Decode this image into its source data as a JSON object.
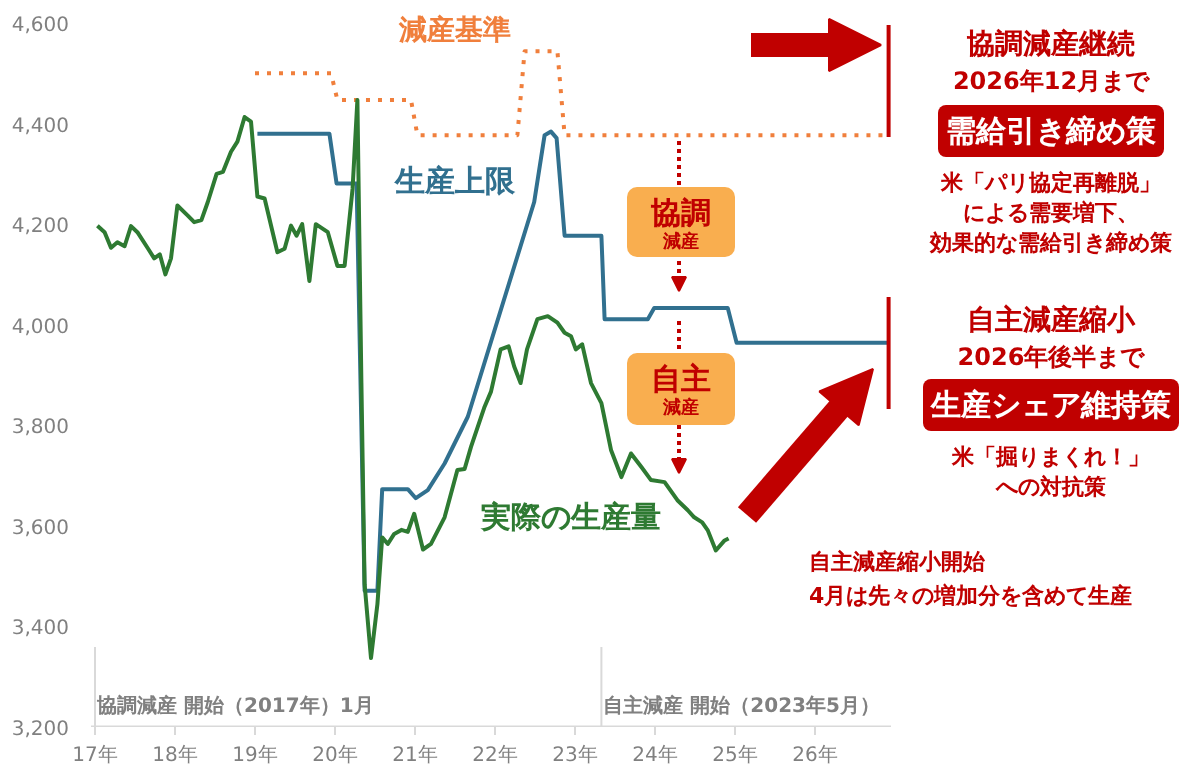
{
  "chart_data": {
    "type": "line",
    "xlim": [
      16.95,
      26.95
    ],
    "ylim": [
      3200,
      4600
    ],
    "xticks": [
      {
        "value": 17,
        "label": "17年"
      },
      {
        "value": 18,
        "label": "18年"
      },
      {
        "value": 19,
        "label": "19年"
      },
      {
        "value": 20,
        "label": "20年"
      },
      {
        "value": 21,
        "label": "21年"
      },
      {
        "value": 22,
        "label": "22年"
      },
      {
        "value": 23,
        "label": "23年"
      },
      {
        "value": 24,
        "label": "24年"
      },
      {
        "value": 25,
        "label": "25年"
      },
      {
        "value": 26,
        "label": "26年"
      }
    ],
    "yticks": [
      {
        "value": 3200,
        "label": "3,200"
      },
      {
        "value": 3400,
        "label": "3,400"
      },
      {
        "value": 3600,
        "label": "3,600"
      },
      {
        "value": 3800,
        "label": "3,800"
      },
      {
        "value": 4000,
        "label": "4,000"
      },
      {
        "value": 4200,
        "label": "4,200"
      },
      {
        "value": 4400,
        "label": "4,400"
      },
      {
        "value": 4600,
        "label": "4,600"
      }
    ],
    "grid": false,
    "series": [
      {
        "name": "減産基準",
        "color": "#f07f3c",
        "line_style": "dotted",
        "x": [
          19.0,
          19.95,
          20.03,
          20.95,
          21.03,
          22.28,
          22.37,
          22.78,
          22.87,
          26.91
        ],
        "values": [
          4500,
          4500,
          4447,
          4447,
          4377,
          4377,
          4544,
          4544,
          4377,
          4377
        ]
      },
      {
        "name": "生産上限",
        "color": "#31708f",
        "line_style": "solid",
        "x": [
          19.03,
          19.93,
          20.02,
          20.27,
          20.37,
          20.53,
          20.59,
          20.91,
          21.01,
          21.16,
          21.37,
          21.66,
          22.49,
          22.62,
          22.7,
          22.77,
          22.87,
          23.33,
          23.37,
          23.91,
          23.99,
          24.91,
          25.02,
          26.91
        ],
        "values": [
          4380,
          4380,
          4281,
          4281,
          3471,
          3471,
          3673,
          3673,
          3655,
          3671,
          3724,
          3817,
          4244,
          4377,
          4384,
          4371,
          4177,
          4177,
          4011,
          4011,
          4033,
          4033,
          3964,
          3964
        ]
      },
      {
        "name": "実際の生産量",
        "color": "#2e7a32",
        "line_style": "solid",
        "x": [
          17.03,
          17.12,
          17.2,
          17.28,
          17.37,
          17.45,
          17.53,
          17.66,
          17.74,
          17.81,
          17.88,
          17.95,
          18.03,
          18.16,
          18.24,
          18.33,
          18.41,
          18.52,
          18.6,
          18.7,
          18.78,
          18.87,
          18.95,
          19.03,
          19.12,
          19.28,
          19.37,
          19.45,
          19.52,
          19.59,
          19.68,
          19.76,
          19.91,
          20.03,
          20.12,
          20.22,
          20.28,
          20.33,
          20.37,
          20.45,
          20.53,
          20.59,
          20.66,
          20.74,
          20.83,
          20.91,
          20.99,
          21.1,
          21.2,
          21.37,
          21.53,
          21.62,
          21.7,
          21.87,
          21.95,
          22.07,
          22.17,
          22.24,
          22.32,
          22.4,
          22.53,
          22.66,
          22.78,
          22.87,
          22.95,
          23.01,
          23.09,
          23.2,
          23.33,
          23.45,
          23.58,
          23.7,
          23.83,
          23.95,
          24.12,
          24.28,
          24.41,
          24.49,
          24.59,
          24.66,
          24.76,
          24.87,
          24.92
        ],
        "values": [
          4197,
          4184,
          4153,
          4164,
          4156,
          4196,
          4184,
          4152,
          4132,
          4140,
          4100,
          4132,
          4237,
          4217,
          4204,
          4208,
          4244,
          4300,
          4304,
          4344,
          4364,
          4413,
          4404,
          4255,
          4251,
          4144,
          4151,
          4197,
          4177,
          4200,
          4087,
          4200,
          4184,
          4117,
          4117,
          4271,
          4447,
          3884,
          3484,
          3337,
          3444,
          3577,
          3564,
          3584,
          3592,
          3588,
          3624,
          3553,
          3564,
          3617,
          3711,
          3713,
          3757,
          3837,
          3867,
          3951,
          3957,
          3917,
          3884,
          3951,
          4011,
          4017,
          4004,
          3984,
          3977,
          3951,
          3961,
          3884,
          3844,
          3751,
          3697,
          3744,
          3717,
          3691,
          3687,
          3651,
          3631,
          3617,
          3607,
          3591,
          3551,
          3571,
          3575
        ]
      }
    ],
    "ref_lines": [
      {
        "axis": "x",
        "value": 17.0,
        "label": "協調減産 開始（2017年）1月",
        "color": "#d9d9d9"
      },
      {
        "axis": "x",
        "value": 23.33,
        "label": "自主減産 開始（2023年5月）",
        "color": "#d9d9d9"
      },
      {
        "axis": "x",
        "value": 26.92,
        "color": "#c00000"
      }
    ],
    "annotations": [
      "協調減産継続",
      "2026年12月まで",
      "需給引き締め策",
      "米「パリ協定再離脱」",
      "による需要増下、",
      "効果的な需給引き締め策",
      "自主減産縮小",
      "2026年後半まで",
      "生産シェア維持策",
      "米「掘りまくれ！」",
      "への対抗策",
      "自主減産縮小開始\n4月は先々の増加分を含めて生産",
      "協調",
      "減産",
      "自主",
      "減産"
    ]
  }
}
